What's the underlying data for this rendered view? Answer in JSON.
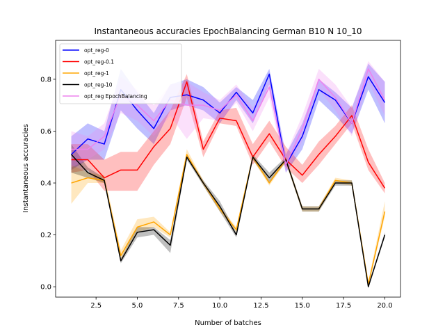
{
  "chart_data": {
    "type": "line",
    "title": "Instantaneous accuracies EpochBalancing German B10 N 10_10",
    "xlabel": "Number of batches",
    "ylabel": "Instantaneous accuracies",
    "xlim": [
      0.05,
      20.95
    ],
    "ylim": [
      -0.04,
      0.95
    ],
    "xticks": [
      2.5,
      5.0,
      7.5,
      10.0,
      12.5,
      15.0,
      17.5,
      20.0
    ],
    "xtick_labels": [
      "2.5",
      "5.0",
      "7.5",
      "10.0",
      "12.5",
      "15.0",
      "17.5",
      "20.0"
    ],
    "yticks": [
      0.0,
      0.2,
      0.4,
      0.6,
      0.8
    ],
    "ytick_labels": [
      "0.0",
      "0.2",
      "0.4",
      "0.6",
      "0.8"
    ],
    "grid": false,
    "legend_position": "top-left",
    "x": [
      1,
      2,
      3,
      4,
      5,
      6,
      7,
      8,
      9,
      10,
      11,
      12,
      13,
      14,
      15,
      16,
      17,
      18,
      19,
      20
    ],
    "series": [
      {
        "name": "opt_reg-0",
        "color": "#0000ff",
        "values": [
          0.51,
          0.57,
          0.55,
          0.76,
          0.68,
          0.61,
          0.73,
          0.74,
          0.72,
          0.67,
          0.75,
          0.67,
          0.82,
          0.47,
          0.58,
          0.76,
          0.72,
          0.63,
          0.81,
          0.71
        ],
        "lower": [
          0.45,
          0.49,
          0.49,
          0.68,
          0.61,
          0.55,
          0.68,
          0.7,
          0.68,
          0.63,
          0.72,
          0.63,
          0.78,
          0.44,
          0.53,
          0.72,
          0.66,
          0.59,
          0.76,
          0.63
        ],
        "upper": [
          0.58,
          0.63,
          0.6,
          0.84,
          0.75,
          0.67,
          0.78,
          0.8,
          0.77,
          0.71,
          0.77,
          0.72,
          0.84,
          0.51,
          0.63,
          0.8,
          0.75,
          0.69,
          0.86,
          0.79
        ]
      },
      {
        "name": "opt_reg-0.1",
        "color": "#ff0000",
        "values": [
          0.49,
          0.49,
          0.42,
          0.45,
          0.45,
          0.54,
          0.61,
          0.79,
          0.53,
          0.65,
          0.64,
          0.5,
          0.59,
          0.49,
          0.43,
          0.51,
          0.58,
          0.66,
          0.48,
          0.38
        ],
        "lower": [
          0.44,
          0.45,
          0.37,
          0.37,
          0.37,
          0.47,
          0.55,
          0.73,
          0.5,
          0.63,
          0.62,
          0.47,
          0.56,
          0.46,
          0.4,
          0.47,
          0.55,
          0.63,
          0.45,
          0.36
        ],
        "upper": [
          0.55,
          0.55,
          0.49,
          0.52,
          0.52,
          0.6,
          0.68,
          0.82,
          0.56,
          0.68,
          0.69,
          0.55,
          0.64,
          0.54,
          0.47,
          0.56,
          0.62,
          0.7,
          0.53,
          0.4
        ]
      },
      {
        "name": "opt_reg-1",
        "color": "#ffa500",
        "values": [
          0.4,
          0.42,
          0.41,
          0.12,
          0.23,
          0.25,
          0.2,
          0.51,
          0.4,
          0.3,
          0.22,
          0.5,
          0.4,
          0.49,
          0.3,
          0.3,
          0.41,
          0.4,
          0.01,
          0.29
        ],
        "lower": [
          0.32,
          0.4,
          0.4,
          0.1,
          0.21,
          0.23,
          0.19,
          0.5,
          0.39,
          0.29,
          0.21,
          0.49,
          0.39,
          0.48,
          0.29,
          0.29,
          0.4,
          0.39,
          0.0,
          0.27
        ],
        "upper": [
          0.47,
          0.44,
          0.43,
          0.14,
          0.26,
          0.27,
          0.21,
          0.53,
          0.41,
          0.31,
          0.23,
          0.51,
          0.41,
          0.5,
          0.31,
          0.31,
          0.42,
          0.41,
          0.02,
          0.33
        ]
      },
      {
        "name": "opt_reg-10",
        "color": "#000000",
        "values": [
          0.51,
          0.44,
          0.41,
          0.1,
          0.21,
          0.22,
          0.16,
          0.5,
          0.4,
          0.31,
          0.2,
          0.5,
          0.42,
          0.49,
          0.3,
          0.3,
          0.4,
          0.4,
          0.0,
          0.2
        ],
        "lower": [
          0.44,
          0.42,
          0.4,
          0.09,
          0.19,
          0.2,
          0.13,
          0.49,
          0.39,
          0.29,
          0.19,
          0.49,
          0.4,
          0.48,
          0.29,
          0.29,
          0.39,
          0.39,
          0.0,
          0.19
        ],
        "upper": [
          0.55,
          0.46,
          0.42,
          0.11,
          0.23,
          0.23,
          0.18,
          0.51,
          0.41,
          0.33,
          0.21,
          0.51,
          0.44,
          0.5,
          0.31,
          0.31,
          0.41,
          0.41,
          0.01,
          0.21
        ]
      },
      {
        "name": "opt_reg EpochBalancing",
        "color": "#ee82ee",
        "values": [
          0.53,
          0.53,
          0.58,
          0.74,
          0.7,
          0.64,
          0.72,
          0.7,
          0.7,
          0.68,
          0.74,
          0.64,
          0.77,
          0.47,
          0.61,
          0.8,
          0.73,
          0.63,
          0.84,
          0.72
        ],
        "lower": [
          0.46,
          0.49,
          0.53,
          0.67,
          0.64,
          0.58,
          0.66,
          0.57,
          0.65,
          0.64,
          0.71,
          0.6,
          0.73,
          0.44,
          0.56,
          0.76,
          0.68,
          0.58,
          0.79,
          0.66
        ],
        "upper": [
          0.6,
          0.58,
          0.63,
          0.81,
          0.76,
          0.7,
          0.78,
          0.79,
          0.75,
          0.72,
          0.78,
          0.69,
          0.8,
          0.51,
          0.66,
          0.84,
          0.78,
          0.69,
          0.87,
          0.79
        ]
      }
    ]
  }
}
